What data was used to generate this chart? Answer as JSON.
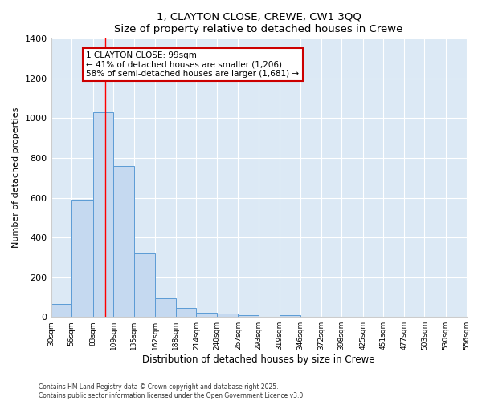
{
  "title1": "1, CLAYTON CLOSE, CREWE, CW1 3QQ",
  "title2": "Size of property relative to detached houses in Crewe",
  "xlabel": "Distribution of detached houses by size in Crewe",
  "ylabel": "Number of detached properties",
  "bin_labels": [
    "30sqm",
    "56sqm",
    "83sqm",
    "109sqm",
    "135sqm",
    "162sqm",
    "188sqm",
    "214sqm",
    "240sqm",
    "267sqm",
    "293sqm",
    "319sqm",
    "346sqm",
    "372sqm",
    "398sqm",
    "425sqm",
    "451sqm",
    "477sqm",
    "503sqm",
    "530sqm",
    "556sqm"
  ],
  "bin_edges": [
    30,
    56,
    83,
    109,
    135,
    162,
    188,
    214,
    240,
    267,
    293,
    319,
    346,
    372,
    398,
    425,
    451,
    477,
    503,
    530,
    556
  ],
  "bar_heights": [
    65,
    590,
    1030,
    760,
    320,
    95,
    45,
    22,
    15,
    10,
    0,
    10,
    0,
    0,
    0,
    0,
    0,
    0,
    0,
    0
  ],
  "bar_color": "#c5d9f0",
  "bar_edge_color": "#5b9bd5",
  "red_line_x": 99,
  "annotation_line1": "1 CLAYTON CLOSE: 99sqm",
  "annotation_line2": "← 41% of detached houses are smaller (1,206)",
  "annotation_line3": "58% of semi-detached houses are larger (1,681) →",
  "annotation_box_color": "#ffffff",
  "annotation_box_edge": "#cc0000",
  "ylim": [
    0,
    1400
  ],
  "yticks": [
    0,
    200,
    400,
    600,
    800,
    1000,
    1200,
    1400
  ],
  "footer1": "Contains HM Land Registry data © Crown copyright and database right 2025.",
  "footer2": "Contains public sector information licensed under the Open Government Licence v3.0.",
  "fig_background": "#ffffff",
  "plot_background": "#dce9f5",
  "grid_color": "#ffffff"
}
